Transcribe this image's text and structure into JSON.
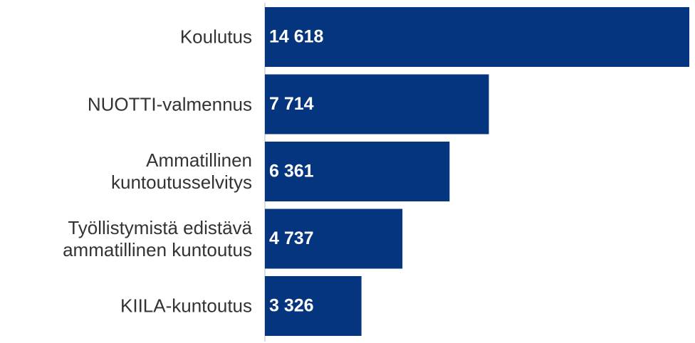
{
  "chart_data": {
    "type": "bar",
    "orientation": "horizontal",
    "categories": [
      "Koulutus",
      "NUOTTI-valmennus",
      "Ammatillinen\nkuntoutusselvitys",
      "Työllistymistä edistävä\nammatillinen kuntoutus",
      "KIILA-kuntoutus"
    ],
    "values": [
      14618,
      7714,
      6361,
      4737,
      3326
    ],
    "value_labels": [
      "14 618",
      "7 714",
      "6 361",
      "4 737",
      "3 326"
    ],
    "color": "#05357f"
  }
}
